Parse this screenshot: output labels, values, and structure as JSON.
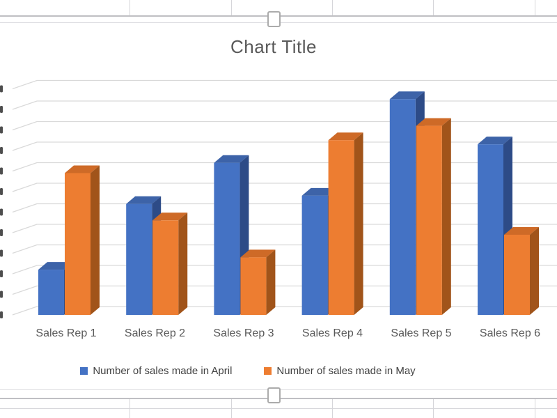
{
  "chart_data": {
    "type": "bar",
    "variant": "3d-clustered-column",
    "title": "Chart Title",
    "categories": [
      "Sales Rep 1",
      "Sales Rep 2",
      "Sales Rep 3",
      "Sales Rep 4",
      "Sales Rep 5",
      "Sales Rep 6"
    ],
    "series": [
      {
        "name": "Number of sales made in April",
        "values": [
          2.2,
          5.4,
          7.4,
          5.8,
          10.5,
          8.3
        ],
        "colors": {
          "front": "#4472C4",
          "top": "#3D63A8",
          "side": "#2D4B87"
        }
      },
      {
        "name": "Number of sales made in May",
        "values": [
          6.9,
          4.6,
          2.8,
          8.5,
          9.2,
          3.9
        ],
        "colors": {
          "front": "#ED7D31",
          "top": "#CE6A27",
          "side": "#A1541A"
        }
      }
    ],
    "ylim": [
      0,
      11.5
    ],
    "y_major_unit": 1,
    "y_tick_labels_visible": false,
    "values_note": "values estimated from gridlines; y-axis tick labels are cropped at the left edge of the screenshot",
    "grid": true,
    "legend_position": "bottom"
  },
  "colors": {
    "gridline": "#D9D9D9",
    "axis_tick_fragment": "#4D4D4D",
    "title_text": "#595959",
    "axis_text": "#595959",
    "legend_text": "#404040",
    "frame_line_dark": "#BFBFC3",
    "frame_line_light": "#DDDDE1",
    "cell_border": "#D6D6DA",
    "handle_border": "#ABABAB"
  }
}
